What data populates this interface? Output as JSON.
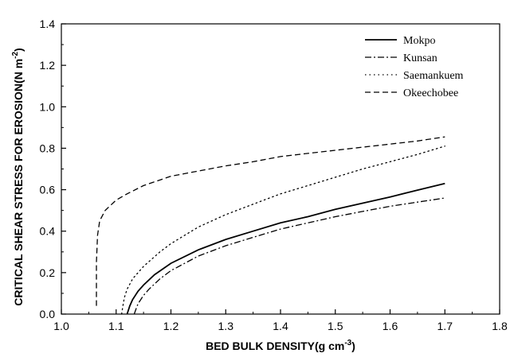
{
  "chart_data": {
    "type": "line",
    "title": "",
    "xlabel": "BED BULK DENSITY(g cm",
    "xlabel_sup": "-3",
    "xlabel_end": ")",
    "ylabel": "CRITICAL SHEAR STRESS FOR EROSION(N m",
    "ylabel_sup": "-2",
    "ylabel_end": ")",
    "xlim": [
      1.0,
      1.8
    ],
    "ylim": [
      0.0,
      1.4
    ],
    "xticks": [
      "1.0",
      "1.1",
      "1.2",
      "1.3",
      "1.4",
      "1.5",
      "1.6",
      "1.7",
      "1.8"
    ],
    "yticks": [
      "0.0",
      "0.2",
      "0.4",
      "0.6",
      "0.8",
      "1.0",
      "1.2",
      "1.4"
    ],
    "grid": false,
    "legend_position": "top-right",
    "series": [
      {
        "name": "Mokpo",
        "style": "solid",
        "color": "#000000",
        "x": [
          1.12,
          1.125,
          1.13,
          1.14,
          1.15,
          1.17,
          1.2,
          1.25,
          1.3,
          1.35,
          1.4,
          1.45,
          1.5,
          1.55,
          1.6,
          1.65,
          1.7
        ],
        "y": [
          0.0,
          0.04,
          0.07,
          0.11,
          0.14,
          0.19,
          0.245,
          0.31,
          0.36,
          0.4,
          0.44,
          0.47,
          0.505,
          0.535,
          0.565,
          0.598,
          0.63
        ]
      },
      {
        "name": "Kunsan",
        "style": "dashdot",
        "color": "#000000",
        "x": [
          1.133,
          1.137,
          1.14,
          1.15,
          1.16,
          1.18,
          1.2,
          1.25,
          1.3,
          1.35,
          1.4,
          1.45,
          1.5,
          1.55,
          1.6,
          1.65,
          1.7
        ],
        "y": [
          0.0,
          0.03,
          0.05,
          0.09,
          0.12,
          0.17,
          0.21,
          0.28,
          0.33,
          0.37,
          0.41,
          0.44,
          0.47,
          0.495,
          0.52,
          0.54,
          0.56
        ]
      },
      {
        "name": "Saemankuem",
        "style": "dotted",
        "color": "#000000",
        "x": [
          1.11,
          1.113,
          1.115,
          1.12,
          1.13,
          1.15,
          1.18,
          1.2,
          1.25,
          1.3,
          1.35,
          1.4,
          1.45,
          1.5,
          1.55,
          1.6,
          1.65,
          1.7
        ],
        "y": [
          0.0,
          0.05,
          0.08,
          0.12,
          0.17,
          0.23,
          0.3,
          0.34,
          0.42,
          0.48,
          0.53,
          0.58,
          0.62,
          0.66,
          0.7,
          0.735,
          0.77,
          0.81
        ]
      },
      {
        "name": "Okeechobee",
        "style": "dashed",
        "color": "#000000",
        "x": [
          1.064,
          1.064,
          1.066,
          1.07,
          1.08,
          1.1,
          1.12,
          1.15,
          1.2,
          1.25,
          1.3,
          1.35,
          1.4,
          1.45,
          1.5,
          1.55,
          1.6,
          1.65,
          1.7
        ],
        "y": [
          0.04,
          0.25,
          0.38,
          0.45,
          0.5,
          0.55,
          0.58,
          0.62,
          0.665,
          0.69,
          0.715,
          0.735,
          0.76,
          0.775,
          0.79,
          0.805,
          0.82,
          0.835,
          0.855
        ]
      }
    ]
  }
}
